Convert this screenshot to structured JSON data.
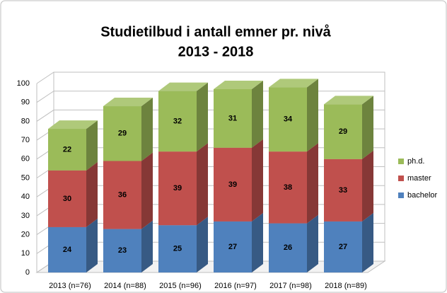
{
  "chart_data": {
    "type": "bar3d_stacked",
    "title": "Studietilbud i antall emner pr. nivå",
    "subtitle": "2013 - 2018",
    "categories": [
      "2013 (n=76)",
      "2014 (n=88)",
      "2015 (n=96)",
      "2016 (n=97)",
      "2017 (n=98)",
      "2018 (n=89)"
    ],
    "series": [
      {
        "name": "bachelor",
        "color": "#4f81bd",
        "values": [
          24,
          23,
          25,
          27,
          26,
          27
        ]
      },
      {
        "name": "master",
        "color": "#c0504d",
        "values": [
          30,
          36,
          39,
          39,
          38,
          33
        ]
      },
      {
        "name": "ph.d.",
        "color": "#9bbb59",
        "values": [
          22,
          29,
          32,
          31,
          34,
          29
        ]
      }
    ],
    "ylim": [
      0,
      100
    ],
    "yticks": [
      0,
      10,
      20,
      30,
      40,
      50,
      60,
      70,
      80,
      90,
      100
    ],
    "grid": true,
    "legend": "right"
  }
}
